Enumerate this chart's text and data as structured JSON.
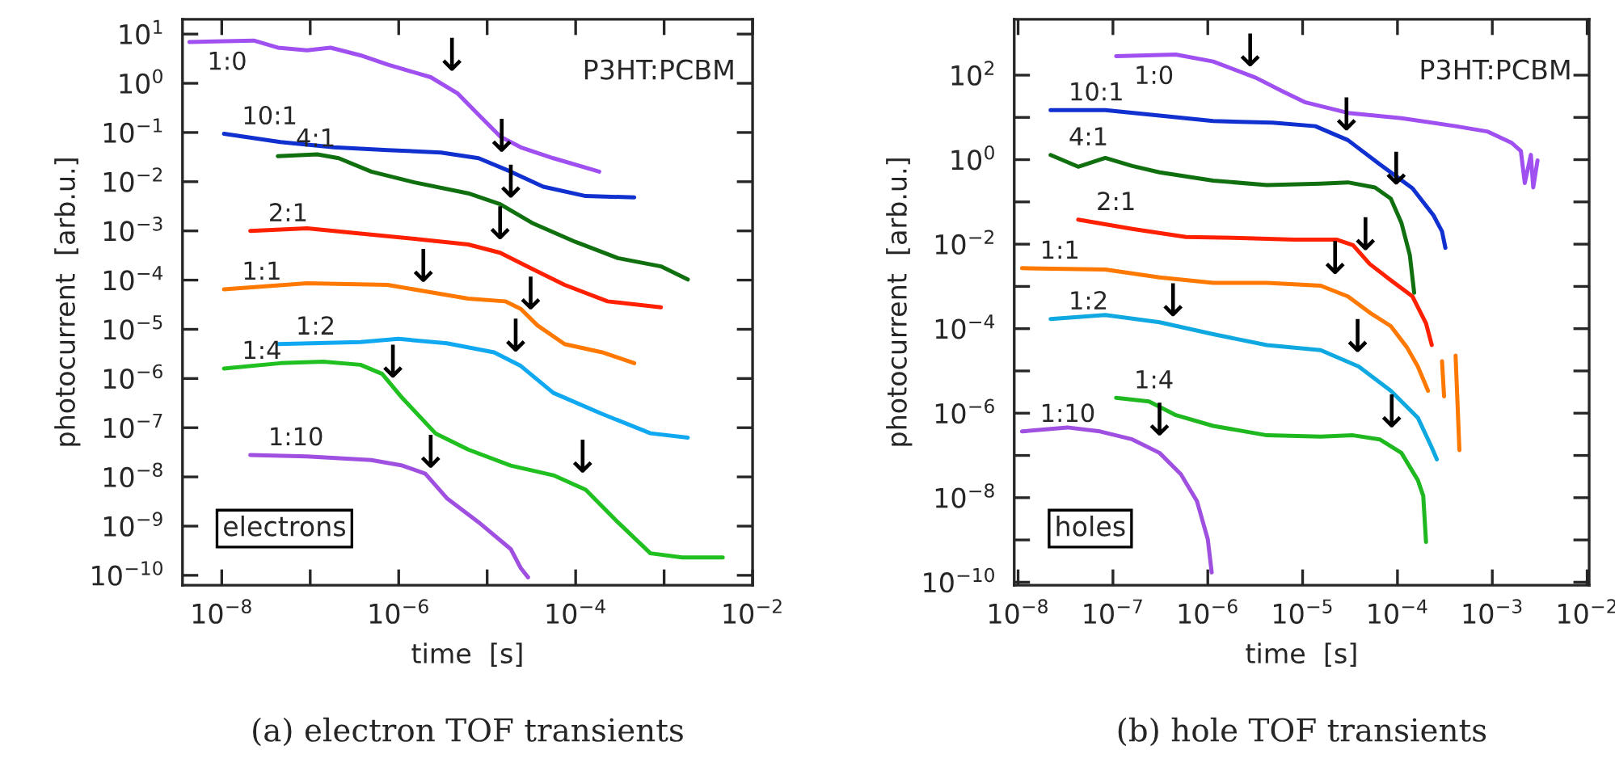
{
  "chart_data": [
    {
      "type": "line",
      "title": "(a) electron TOF transients",
      "xlabel": "time  [s]",
      "ylabel": "photocurrent  [arb.u.]",
      "log": "xy",
      "grid": false,
      "marker": "none",
      "line_style": "solid",
      "xlim": [
        3.6e-09,
        0.01
      ],
      "ylim": [
        6.3e-11,
        20
      ],
      "xticks": [
        {
          "value": 1e-08,
          "label": "10$^{−8}$"
        },
        {
          "value": 1e-07,
          "label": null
        },
        {
          "value": 1e-06,
          "label": "10$^{−6}$"
        },
        {
          "value": 1e-05,
          "label": null
        },
        {
          "value": 0.0001,
          "label": "10$^{−4}$"
        },
        {
          "value": 0.001,
          "label": null
        },
        {
          "value": 0.01,
          "label": "10$^{−2}$"
        }
      ],
      "yticks": [
        {
          "value": 10,
          "label": "10$^{1}$"
        },
        {
          "value": 1,
          "label": "10$^{0}$"
        },
        {
          "value": 0.1,
          "label": "10$^{−1}$"
        },
        {
          "value": 0.01,
          "label": "10$^{−2}$"
        },
        {
          "value": 0.001,
          "label": "10$^{−3}$"
        },
        {
          "value": 0.0001,
          "label": "10$^{−4}$"
        },
        {
          "value": 1e-05,
          "label": "10$^{−5}$"
        },
        {
          "value": 1e-06,
          "label": "10$^{−6}$"
        },
        {
          "value": 1e-07,
          "label": "10$^{−7}$"
        },
        {
          "value": 1e-08,
          "label": "10$^{−8}$"
        },
        {
          "value": 1e-09,
          "label": "10$^{−9}$"
        },
        {
          "value": 1e-10,
          "label": "10$^{−10}$"
        }
      ],
      "series": [
        {
          "name": "1:0",
          "color": "#a050f0",
          "x": [
            4.3e-09,
            2.3e-08,
            4.3e-08,
            9.2e-08,
            1.7e-07,
            3.7e-07,
            7.5e-07,
            2.3e-06,
            4.6e-06,
            8e-06,
            1.4e-05,
            2.4e-05,
            5.6e-05,
            0.000185
          ],
          "values": [
            6.9,
            7.4,
            5.3,
            4.7,
            5.3,
            3.7,
            2.4,
            1.33,
            0.63,
            0.23,
            0.083,
            0.05,
            0.03,
            0.016
          ]
        },
        {
          "name": "10:1",
          "color": "#1030d0",
          "x": [
            1.06e-08,
            4.6e-08,
            1.85e-07,
            7.5e-07,
            3e-06,
            8e-06,
            1.85e-05,
            4.3e-05,
            0.00013,
            0.00046
          ],
          "values": [
            0.094,
            0.064,
            0.05,
            0.044,
            0.039,
            0.03,
            0.016,
            0.0079,
            0.0051,
            0.0048
          ]
        },
        {
          "name": "4:1",
          "color": "#107010",
          "x": [
            4.3e-08,
            1.2e-07,
            2.1e-07,
            4.9e-07,
            1.5e-06,
            6.1e-06,
            1.4e-05,
            3.2e-05,
            9.9e-05,
            0.0003,
            0.00092,
            0.00185
          ],
          "values": [
            0.033,
            0.036,
            0.03,
            0.016,
            0.0097,
            0.0058,
            0.0035,
            0.00146,
            0.0006,
            0.00028,
            0.00019,
            0.000103
          ]
        },
        {
          "name": "2:1",
          "color": "#ff2000",
          "x": [
            2.1e-08,
            9.2e-08,
            3.7e-07,
            1.5e-06,
            6.1e-06,
            1.4e-05,
            3.2e-05,
            7.5e-05,
            0.00023,
            0.00092
          ],
          "values": [
            0.001,
            0.00113,
            0.00088,
            0.00069,
            0.00053,
            0.00036,
            0.00017,
            8e-05,
            3.7e-05,
            2.8e-05
          ]
        },
        {
          "name": "1:1",
          "color": "#ff7800",
          "x": [
            1.06e-08,
            9.2e-08,
            7.5e-07,
            2e-06,
            6.1e-06,
            1.6e-05,
            2.4e-05,
            3.7e-05,
            7.5e-05,
            0.0002,
            0.00046
          ],
          "values": [
            6.5e-05,
            8.6e-05,
            8e-05,
            5.9e-05,
            4.2e-05,
            3.7e-05,
            2.6e-05,
            1.2e-05,
            5e-06,
            3.4e-06,
            2.05e-06
          ]
        },
        {
          "name": "1:2",
          "color": "#10a8f0",
          "x": [
            4.3e-08,
            3.7e-07,
            9.9e-07,
            3.5e-06,
            1.2e-05,
            2.4e-05,
            5.6e-05,
            0.0002,
            0.0007,
            0.00185
          ],
          "values": [
            5e-06,
            5.5e-06,
            6.4e-06,
            5.2e-06,
            3.4e-06,
            1.8e-06,
            5.1e-07,
            1.9e-07,
            7.7e-08,
            6.3e-08
          ]
        },
        {
          "name": "1:4",
          "color": "#20c020",
          "x": [
            1.06e-08,
            4.6e-08,
            1.4e-07,
            3.7e-07,
            6.5e-07,
            1.1e-06,
            2.6e-06,
            6.1e-06,
            1.85e-05,
            5.6e-05,
            0.00013,
            0.0003,
            0.0007,
            0.0016,
            0.0046
          ],
          "values": [
            1.6e-06,
            2.05e-06,
            2.2e-06,
            1.9e-06,
            1.24e-06,
            4e-07,
            7.7e-08,
            3.6e-08,
            1.7e-08,
            1.08e-08,
            5.5e-09,
            1.2e-09,
            2.8e-10,
            2.3e-10,
            2.3e-10
          ]
        },
        {
          "name": "1:10",
          "color": "#a050e0",
          "x": [
            2.1e-08,
            9.2e-08,
            4.9e-07,
            1.1e-06,
            2e-06,
            3.5e-06,
            8e-06,
            1.85e-05,
            2.4e-05,
            2.9e-05
          ],
          "values": [
            2.8e-08,
            2.6e-08,
            2.2e-08,
            1.7e-08,
            1.16e-08,
            3.7e-09,
            1.2e-09,
            3.4e-10,
            1.4e-10,
            9.1e-11
          ]
        }
      ],
      "annotations": [
        "P3HT:PCBM",
        "electrons",
        {
          "text": "↓",
          "x": 4e-06,
          "y": 1.17
        },
        {
          "text": "↓",
          "x": 1.46e-05,
          "y": 0.0265
        },
        {
          "text": "↓",
          "x": 1.85e-05,
          "y": 0.0031
        },
        {
          "text": "↓",
          "x": 1.4e-05,
          "y": 0.00044
        },
        {
          "text": "↓",
          "x": 1.9e-06,
          "y": 6e-05
        },
        {
          "text": "↓",
          "x": 3.1e-05,
          "y": 1.65e-05
        },
        {
          "text": "↓",
          "x": 8.6e-07,
          "y": 6.8e-07
        },
        {
          "text": "↓",
          "x": 2.1e-05,
          "y": 2.3e-06
        },
        {
          "text": "↓",
          "x": 0.00012,
          "y": 8e-09
        },
        {
          "text": "↓",
          "x": 2.3e-06,
          "y": 1e-08
        }
      ]
    },
    {
      "type": "line",
      "title": "(b) hole TOF transients",
      "xlabel": "time  [s]",
      "ylabel": "photocurrent  [arb.u.]",
      "log": "xy",
      "grid": false,
      "marker": "none",
      "line_style": "solid",
      "xlim": [
        9.1e-09,
        0.0105
      ],
      "ylim": [
        8.5e-11,
        2100
      ],
      "xticks": [
        {
          "value": 1e-08,
          "label": "10$^{−8}$"
        },
        {
          "value": 1e-07,
          "label": "10$^{−7}$"
        },
        {
          "value": 1e-06,
          "label": "10$^{−6}$"
        },
        {
          "value": 1e-05,
          "label": "10$^{−5}$"
        },
        {
          "value": 0.0001,
          "label": "10$^{−4}$"
        },
        {
          "value": 0.001,
          "label": "10$^{−3}$"
        },
        {
          "value": 0.01,
          "label": "10$^{−2}$"
        }
      ],
      "yticks": [
        {
          "value": 100,
          "label": "10$^{2}$"
        },
        {
          "value": 10,
          "label": null
        },
        {
          "value": 1,
          "label": "10$^{0}$"
        },
        {
          "value": 0.1,
          "label": null
        },
        {
          "value": 0.01,
          "label": "10$^{−2}$"
        },
        {
          "value": 0.001,
          "label": null
        },
        {
          "value": 0.0001,
          "label": "10$^{−4}$"
        },
        {
          "value": 1e-05,
          "label": null
        },
        {
          "value": 1e-06,
          "label": "10$^{−6}$"
        },
        {
          "value": 1e-07,
          "label": null
        },
        {
          "value": 1e-08,
          "label": "10$^{−8}$"
        },
        {
          "value": 1e-09,
          "label": null
        },
        {
          "value": 1e-10,
          "label": "10$^{−10}$"
        }
      ],
      "series": [
        {
          "name": "1:0",
          "color": "#a050f0",
          "x": [
            1.08e-07,
            4.6e-07,
            1.14e-06,
            3.2e-06,
            6.2e-06,
            1.05e-05,
            3e-05,
            0.00011,
            0.00041,
            0.0009,
            0.0016,
            0.002,
            0.0022,
            0.00255,
            0.0027,
            0.003
          ],
          "values": [
            281,
            307,
            210,
            87,
            41,
            23,
            12.8,
            9.6,
            6.2,
            4.6,
            2.5,
            1.6,
            0.28,
            1.3,
            0.22,
            0.96
          ]
        },
        {
          "name": "10:1",
          "color": "#1030d0",
          "x": [
            2.2e-08,
            8.3e-08,
            3.1e-07,
            1.14e-06,
            4.8e-06,
            1.36e-05,
            3e-05,
            6.5e-05,
            0.000144,
            0.00024,
            0.000295,
            0.00032
          ],
          "values": [
            14.9,
            14.9,
            11.0,
            8.2,
            7.5,
            6.2,
            2.9,
            0.78,
            0.21,
            0.048,
            0.02,
            0.0082
          ]
        },
        {
          "name": "4:1",
          "color": "#107010",
          "x": [
            2.2e-08,
            4.3e-08,
            8.3e-08,
            1.6e-07,
            3.1e-07,
            1.14e-06,
            4.2e-06,
            1.55e-05,
            3e-05,
            5.8e-05,
            8.5e-05,
            0.00011,
            0.000135,
            0.00015
          ],
          "values": [
            1.29,
            0.68,
            1.1,
            0.71,
            0.5,
            0.32,
            0.25,
            0.27,
            0.29,
            0.22,
            0.12,
            0.032,
            0.0055,
            0.00071
          ]
        },
        {
          "name": "2:1",
          "color": "#ff2000",
          "x": [
            4.3e-08,
            1.6e-07,
            5.9e-07,
            2.2e-06,
            8.1e-06,
            2.3e-05,
            3.4e-05,
            5.1e-05,
            8.5e-05,
            0.000144,
            0.0002,
            0.00023
          ],
          "values": [
            0.038,
            0.023,
            0.0148,
            0.014,
            0.0128,
            0.0128,
            0.0095,
            0.0034,
            0.0014,
            0.00058,
            0.000134,
            4.1e-05
          ]
        },
        {
          "name": "1:1",
          "color": "#ff7800",
          "x": [
            1.1e-08,
            8.3e-08,
            3.1e-07,
            1.14e-06,
            4.2e-06,
            1.55e-05,
            3e-05,
            5.1e-05,
            8.5e-05,
            0.000126,
            0.000164,
            0.00021,
            0.00025,
            0.000295,
            0.00031,
            0.00036,
            0.00041,
            0.00045
          ],
          "values": [
            0.0027,
            0.0025,
            0.00163,
            0.00121,
            0.00121,
            0.00104,
            0.00058,
            0.00024,
            0.000115,
            3.6e-05,
            1.27e-05,
            3.4e-06,
            null,
            1.7e-05,
            2.5e-06,
            null,
            2.3e-05,
            1.34e-07
          ]
        },
        {
          "name": "1:2",
          "color": "#10a8e0",
          "x": [
            2.2e-08,
            8.3e-08,
            3.1e-07,
            1.14e-06,
            4.2e-06,
            1.55e-05,
            3.9e-05,
            8.5e-05,
            0.000164,
            0.00023,
            0.00026
          ],
          "values": [
            0.00017,
            0.00021,
            0.000142,
            7.4e-05,
            4.1e-05,
            3.1e-05,
            1.27e-05,
            3.4e-06,
            7.8e-07,
            1.54e-07,
            8.1e-08
          ]
        },
        {
          "name": "1:4",
          "color": "#20b820",
          "x": [
            1.08e-07,
            2.4e-07,
            4.6e-07,
            1.14e-06,
            4.2e-06,
            1.55e-05,
            3.4e-05,
            6.5e-05,
            0.00011,
            0.000164,
            0.000187,
            0.0002
          ],
          "values": [
            2.3e-06,
            1.9e-06,
            9e-07,
            5e-07,
            3e-07,
            2.8e-07,
            3e-07,
            2.4e-07,
            1.15e-07,
            2.6e-08,
            1.1e-08,
            9e-10
          ]
        },
        {
          "name": "1:10",
          "color": "#a050e0",
          "x": [
            1.1e-08,
            3.3e-08,
            7.3e-08,
            1.6e-07,
            3.1e-07,
            5.2e-07,
            7.7e-07,
            1e-06,
            1.1e-06
          ],
          "values": [
            3.7e-07,
            4.6e-07,
            3.7e-07,
            2.4e-07,
            1.15e-07,
            3.6e-08,
            8.2e-09,
            1.04e-09,
            1.7e-10
          ]
        }
      ],
      "annotations": [
        "P3HT:PCBM",
        "holes",
        {
          "text": "↓",
          "x": 2.8e-06,
          "y": 98
        },
        {
          "text": "↓",
          "x": 2.9e-05,
          "y": 3.0
        },
        {
          "text": "↓",
          "x": 9.7e-05,
          "y": 0.156
        },
        {
          "text": "↓",
          "x": 4.6e-05,
          "y": 0.0044
        },
        {
          "text": "↓",
          "x": 2.2e-05,
          "y": 0.0012
        },
        {
          "text": "↓",
          "x": 4.3e-07,
          "y": 0.00012
        },
        {
          "text": "↓",
          "x": 3.8e-05,
          "y": 1.7e-05
        },
        {
          "text": "↓",
          "x": 3.1e-07,
          "y": 1.8e-07
        },
        {
          "text": "↓",
          "x": 8.7e-05,
          "y": 2.8e-07
        }
      ]
    }
  ]
}
